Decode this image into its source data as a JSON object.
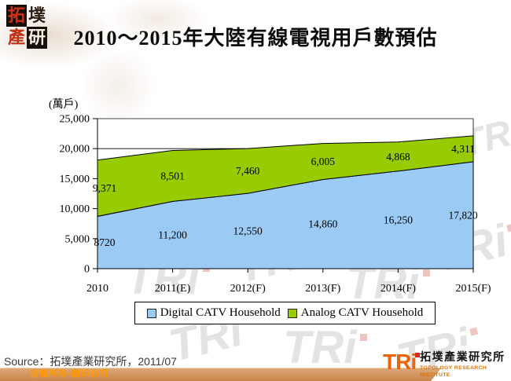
{
  "header": {
    "title": "2010～2015年大陸有線電視用戶數預估",
    "logo_chars": [
      "拓",
      "墣",
      "產",
      "研"
    ]
  },
  "chart_data": {
    "type": "area",
    "stacked": true,
    "unit_label": "(萬戶)",
    "categories": [
      "2010",
      "2011(E)",
      "2012(F)",
      "2013(F)",
      "2014(F)",
      "2015(F)"
    ],
    "series": [
      {
        "name": "Digital CATV Household",
        "color": "#9BCBF5",
        "values": [
          8720,
          11200,
          12550,
          14860,
          16250,
          17820
        ],
        "value_labels": [
          "8720",
          "11,200",
          "12,550",
          "14,860",
          "16,250",
          "17,820"
        ]
      },
      {
        "name": "Analog CATV Household",
        "color": "#99CC00",
        "values": [
          9371,
          8501,
          7460,
          6005,
          4868,
          4311
        ],
        "value_labels": [
          "9,371",
          "8,501",
          "7,460",
          "6,005",
          "4,868",
          "4,311"
        ]
      }
    ],
    "ylim": [
      0,
      25000
    ],
    "ytick_step": 5000,
    "ytick_labels": [
      "0",
      "5,000",
      "10,000",
      "15,000",
      "20,000",
      "25,000"
    ],
    "grid": true,
    "legend_position": "bottom"
  },
  "footer": {
    "source_line": "Source：拓墣產業研究所，2011/07",
    "copyright": "版權所有▪翻印必究"
  },
  "branding": {
    "watermark_text": "TRi",
    "logo_text": "TRi",
    "logo_cn": "拓墣產業研究所",
    "logo_en": "TOPOLOGY RESEARCH INSTITUTE"
  },
  "colors": {
    "digital_area": "#9BCBF5",
    "analog_area": "#99CC00",
    "footer_bar": "#C8854B",
    "copyright_text": "#FF9900",
    "brand_orange": "#E8650A",
    "brand_red": "#D42B1E"
  }
}
